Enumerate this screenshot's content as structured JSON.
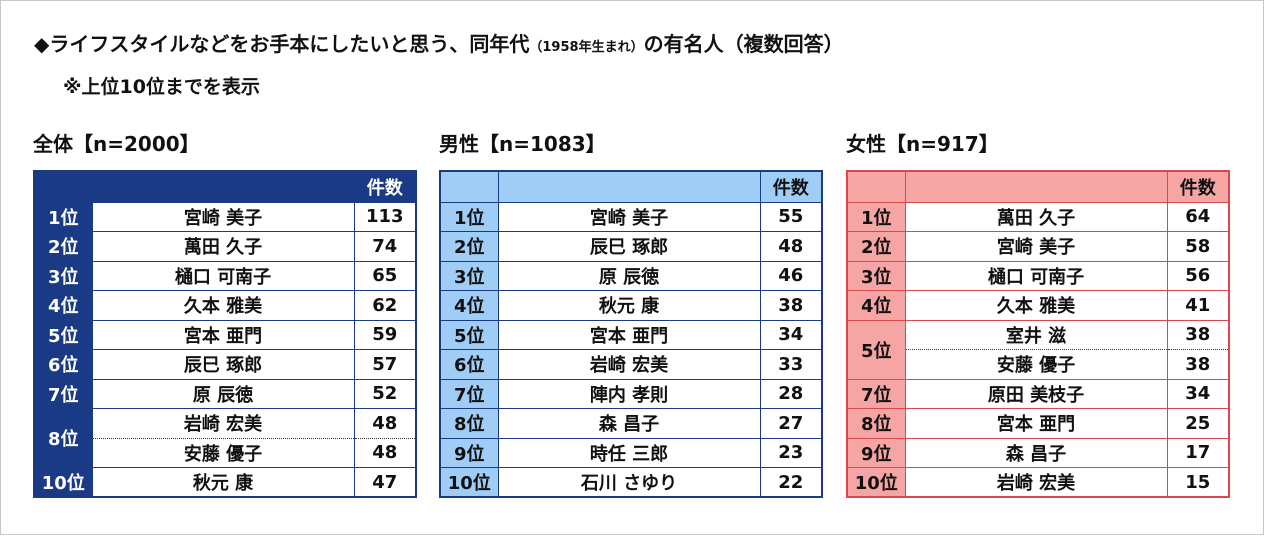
{
  "title": {
    "main": "◆ライフスタイルなどをお手本にしたいと思う、同年代",
    "small": "（1958年生まれ）",
    "suffix": "の有名人（複数回答）"
  },
  "subtitle": "※上位10位までを表示",
  "count_header": "件数",
  "chart_data": [
    {
      "type": "table",
      "title": "全体【n=2000】",
      "rows": [
        {
          "rank": "1位",
          "name": "宮崎 美子",
          "count": 113
        },
        {
          "rank": "2位",
          "name": "萬田 久子",
          "count": 74
        },
        {
          "rank": "3位",
          "name": "樋口 可南子",
          "count": 65
        },
        {
          "rank": "4位",
          "name": "久本 雅美",
          "count": 62
        },
        {
          "rank": "5位",
          "name": "宮本 亜門",
          "count": 59
        },
        {
          "rank": "6位",
          "name": "辰巳 琢郎",
          "count": 57
        },
        {
          "rank": "7位",
          "name": "原 辰徳",
          "count": 52
        },
        {
          "rank": "8位",
          "name": "岩崎 宏美",
          "count": 48
        },
        {
          "rank": "8位",
          "name": "安藤 優子",
          "count": 48
        },
        {
          "rank": "10位",
          "name": "秋元 康",
          "count": 47
        }
      ]
    },
    {
      "type": "table",
      "title": "男性【n=1083】",
      "rows": [
        {
          "rank": "1位",
          "name": "宮崎 美子",
          "count": 55
        },
        {
          "rank": "2位",
          "name": "辰巳 琢郎",
          "count": 48
        },
        {
          "rank": "3位",
          "name": "原 辰徳",
          "count": 46
        },
        {
          "rank": "4位",
          "name": "秋元 康",
          "count": 38
        },
        {
          "rank": "5位",
          "name": "宮本 亜門",
          "count": 34
        },
        {
          "rank": "6位",
          "name": "岩崎 宏美",
          "count": 33
        },
        {
          "rank": "7位",
          "name": "陣内 孝則",
          "count": 28
        },
        {
          "rank": "8位",
          "name": "森 昌子",
          "count": 27
        },
        {
          "rank": "9位",
          "name": "時任 三郎",
          "count": 23
        },
        {
          "rank": "10位",
          "name": "石川 さゆり",
          "count": 22
        }
      ]
    },
    {
      "type": "table",
      "title": "女性【n=917】",
      "rows": [
        {
          "rank": "1位",
          "name": "萬田 久子",
          "count": 64
        },
        {
          "rank": "2位",
          "name": "宮崎 美子",
          "count": 58
        },
        {
          "rank": "3位",
          "name": "樋口 可南子",
          "count": 56
        },
        {
          "rank": "4位",
          "name": "久本 雅美",
          "count": 41
        },
        {
          "rank": "5位",
          "name": "室井 滋",
          "count": 38
        },
        {
          "rank": "5位",
          "name": "安藤 優子",
          "count": 38
        },
        {
          "rank": "7位",
          "name": "原田 美枝子",
          "count": 34
        },
        {
          "rank": "8位",
          "name": "宮本 亜門",
          "count": 25
        },
        {
          "rank": "9位",
          "name": "森 昌子",
          "count": 17
        },
        {
          "rank": "10位",
          "name": "岩崎 宏美",
          "count": 15
        }
      ]
    }
  ]
}
